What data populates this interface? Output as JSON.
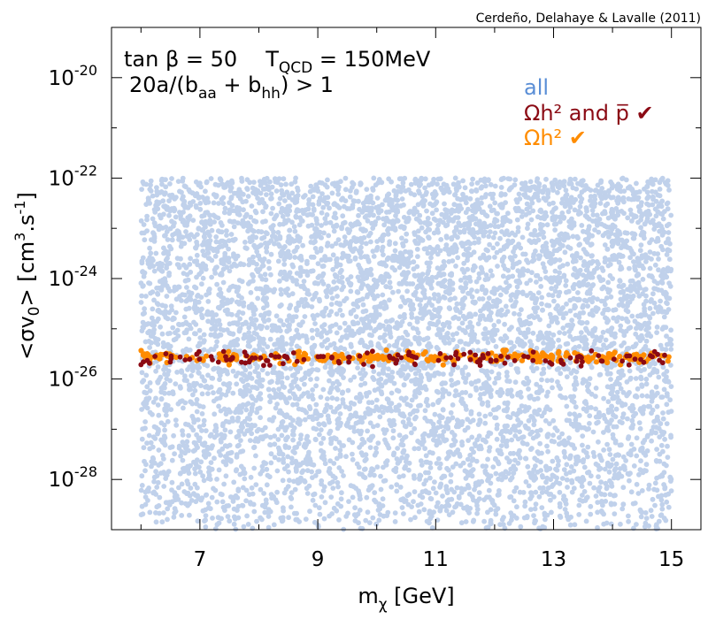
{
  "chart_data": {
    "type": "scatter",
    "credit": "Cerdeño, Delahaye & Lavalle (2011)",
    "xlabel": {
      "main": "m",
      "sub": "χ",
      "unit": " [GeV]"
    },
    "ylabel": {
      "p1": "<σv",
      "sub": "0",
      "p2": "> [cm",
      "sup1": "3",
      "p3": ".s",
      "sup2": "-1",
      "p4": "]"
    },
    "xlim": [
      5.5,
      15.5
    ],
    "ylim_log10": [
      -29,
      -19
    ],
    "x_ticks": [
      {
        "value": 7,
        "label": "7"
      },
      {
        "value": 9,
        "label": "9"
      },
      {
        "value": 11,
        "label": "11"
      },
      {
        "value": 13,
        "label": "13"
      },
      {
        "value": 15,
        "label": "15"
      }
    ],
    "x_minor_ticks": [
      6,
      8,
      10,
      12,
      14
    ],
    "y_ticks": [
      {
        "exp": -20,
        "base": "10",
        "sup": "-20"
      },
      {
        "exp": -22,
        "base": "10",
        "sup": "-22"
      },
      {
        "exp": -24,
        "base": "10",
        "sup": "-24"
      },
      {
        "exp": -26,
        "base": "10",
        "sup": "-26"
      },
      {
        "exp": -28,
        "base": "10",
        "sup": "-28"
      }
    ],
    "y_minor_ticks": [
      -19,
      -21,
      -23,
      -25,
      -27
    ],
    "annotations": {
      "line1_a": "tan β = 50",
      "line1_b_main": "T",
      "line1_b_sub": "QCD",
      "line1_b_rest": " = 150MeV",
      "line2_a": "20a/(b",
      "line2_sub1": "aa",
      "line2_b": " + b",
      "line2_sub2": "hh",
      "line2_c": ") > 1"
    },
    "series": [
      {
        "name": "all",
        "legend_label": "all",
        "color": "#c0d1eb",
        "x_range": [
          6.0,
          15.0
        ],
        "y_log10_range": [
          -29.0,
          -22.0
        ],
        "count": 6500
      },
      {
        "name": "relic_and_antiproton",
        "legend_label": "Ωh² and p̅ ✔",
        "color": "#8b0a14",
        "x_range": [
          6.0,
          15.0
        ],
        "y_log10_center": -25.6,
        "y_log10_spread": 0.12,
        "count": 140
      },
      {
        "name": "relic",
        "legend_label": "Ωh² ✔",
        "color": "#ff8c00",
        "x_range": [
          6.0,
          15.0
        ],
        "y_log10_center": -25.57,
        "y_log10_spread": 0.09,
        "count": 320
      }
    ],
    "legend_colors": {
      "all": "#5a8ed6",
      "relic_and_antiproton": "#8b0a14",
      "relic": "#ff8c00"
    }
  }
}
